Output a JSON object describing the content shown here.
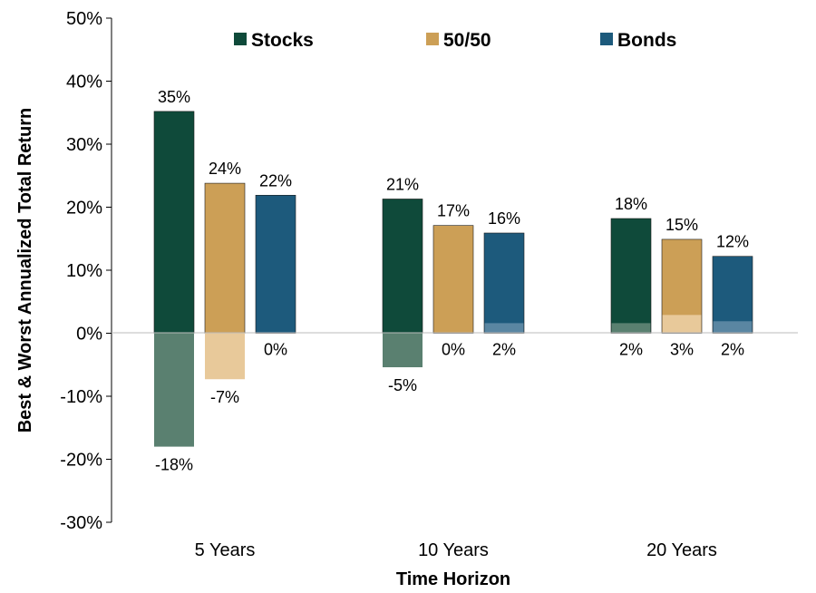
{
  "chart_data": {
    "type": "bar",
    "xlabel": "Time Horizon",
    "ylabel": "Best & Worst Annualized Total Return",
    "ylim": [
      -30,
      50
    ],
    "ytick_step": 10,
    "ytick_suffix": "%",
    "grid": false,
    "legend_position": "top",
    "categories": [
      "5 Years",
      "10 Years",
      "20 Years"
    ],
    "series": [
      {
        "name": "Stocks",
        "color": "#0f4a3a",
        "worst_color": "#5a8070",
        "best": [
          35.2,
          21.3,
          18.2
        ],
        "worst": [
          -18.0,
          -5.4,
          1.6
        ],
        "best_labels": [
          "35%",
          "21%",
          "18%"
        ],
        "worst_labels": [
          "-18%",
          "-5%",
          "2%"
        ]
      },
      {
        "name": "50/50",
        "color": "#cc9f56",
        "worst_color": "#e8c99a",
        "best": [
          23.8,
          17.1,
          14.9
        ],
        "worst": [
          -7.3,
          0.0,
          2.9
        ],
        "best_labels": [
          "24%",
          "17%",
          "15%"
        ],
        "worst_labels": [
          "-7%",
          "0%",
          "3%"
        ]
      },
      {
        "name": "Bonds",
        "color": "#1d5a7c",
        "worst_color": "#5a86a2",
        "best": [
          21.9,
          15.9,
          12.2
        ],
        "worst": [
          0.0,
          1.6,
          1.9
        ],
        "best_labels": [
          "22%",
          "16%",
          "12%"
        ],
        "worst_labels": [
          "0%",
          "2%",
          "2%"
        ]
      }
    ]
  }
}
